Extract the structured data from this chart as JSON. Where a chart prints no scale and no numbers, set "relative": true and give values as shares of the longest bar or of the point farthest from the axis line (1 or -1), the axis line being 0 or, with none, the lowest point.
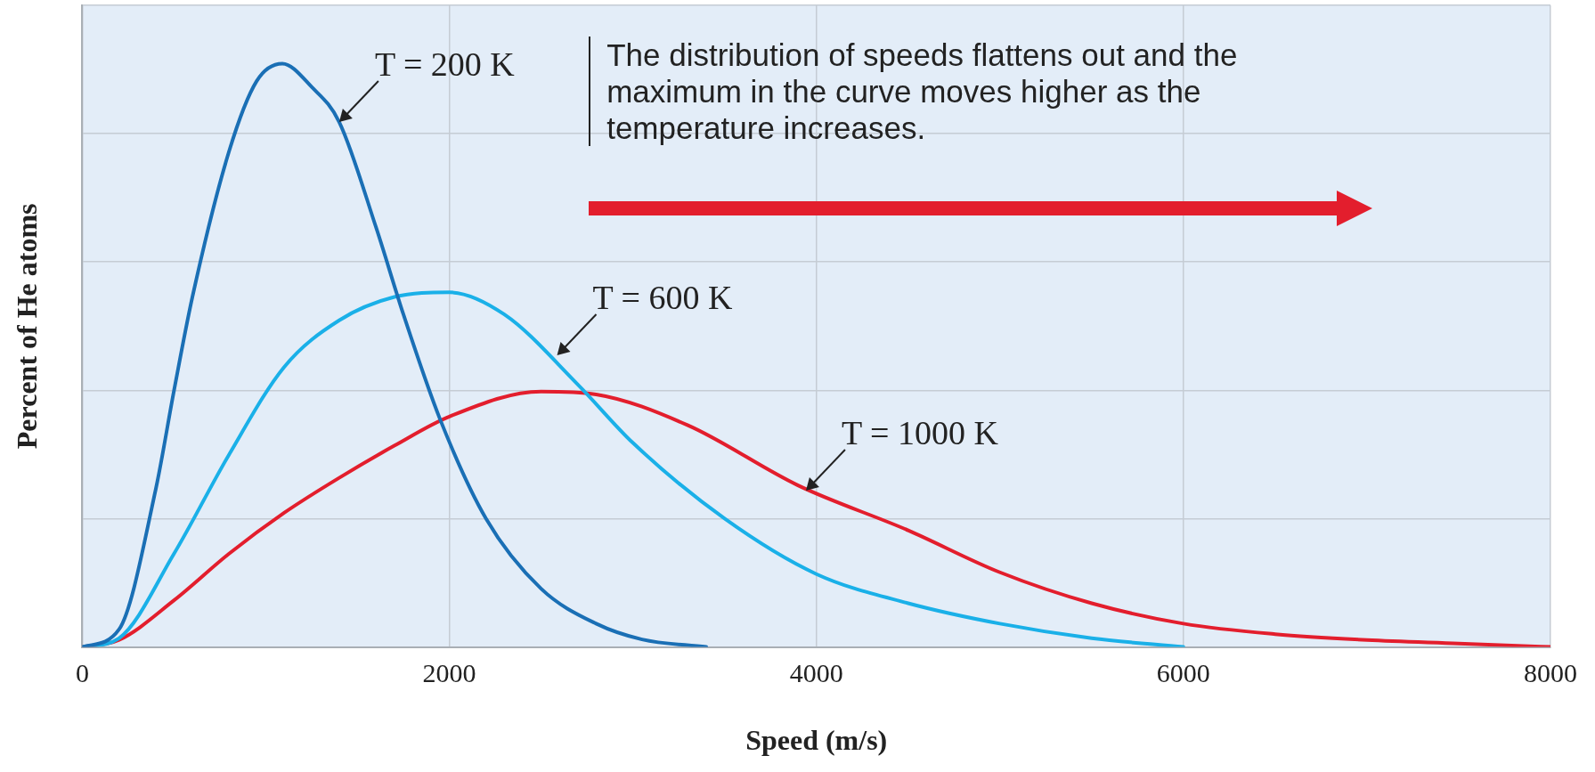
{
  "chart_data": {
    "type": "line",
    "relative": true,
    "xlabel": "Speed (m/s)",
    "ylabel": "Percent of He atoms",
    "xlim": [
      0,
      8000
    ],
    "xticks": [
      0,
      2000,
      4000,
      6000,
      8000
    ],
    "grid": true,
    "legend": false,
    "marker": "none",
    "line_style": "solid",
    "series": [
      {
        "color": "#1a6fb5",
        "x": [
          0,
          200,
          400,
          500,
          600,
          800,
          950,
          1090,
          1250,
          1400,
          1600,
          1750,
          1950,
          2200,
          2500,
          2800,
          3050,
          3400
        ],
        "values": [
          0,
          0.03,
          0.27,
          0.44,
          0.6,
          0.85,
          0.97,
          1,
          0.96,
          0.9,
          0.72,
          0.57,
          0.39,
          0.22,
          0.1,
          0.04,
          0.013,
          0
        ]
      },
      {
        "color": "#1ab0e8",
        "x": [
          0,
          200,
          500,
          800,
          1100,
          1400,
          1700,
          2000,
          2300,
          2700,
          3000,
          3500,
          4000,
          4500,
          5000,
          5500,
          6000
        ],
        "values": [
          0,
          0.015,
          0.16,
          0.33,
          0.48,
          0.56,
          0.6,
          0.608,
          0.57,
          0.45,
          0.35,
          0.22,
          0.125,
          0.075,
          0.04,
          0.015,
          0
        ]
      },
      {
        "color": "#e31e2d",
        "x": [
          0,
          200,
          500,
          800,
          1100,
          1400,
          1700,
          2000,
          2500,
          2800,
          3300,
          3900,
          4500,
          5000,
          5500,
          6000,
          6500,
          7000,
          7500,
          8000
        ],
        "values": [
          0,
          0.012,
          0.08,
          0.16,
          0.23,
          0.29,
          0.345,
          0.395,
          0.438,
          0.433,
          0.38,
          0.277,
          0.2,
          0.128,
          0.075,
          0.04,
          0.022,
          0.012,
          0.006,
          0
        ]
      }
    ],
    "annotations": [
      {
        "text": "T = 200 K",
        "x": 1400,
        "y": 0.9
      },
      {
        "text": "T = 600 K",
        "x": 2587,
        "y": 0.5
      },
      {
        "text": "T = 1000 K",
        "x": 3943,
        "y": 0.268
      },
      "The distribution of speeds flattens out and the maximum in the curve moves higher as the temperature increases."
    ]
  }
}
